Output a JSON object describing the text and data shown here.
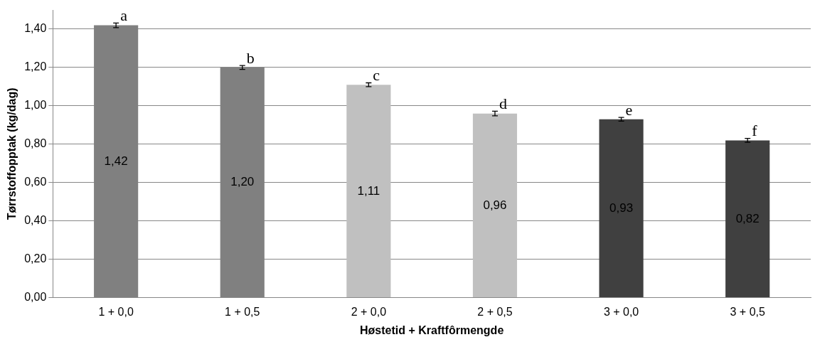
{
  "chart_data": {
    "type": "bar",
    "xlabel": "Høstetid + Kraftfôrmengde",
    "ylabel": "Tørrstoffopptak (kg/dag)",
    "categories": [
      "1 + 0,0",
      "1 + 0,5",
      "2 + 0,0",
      "2 + 0,5",
      "3 + 0,0",
      "3 + 0,5"
    ],
    "values": [
      1.42,
      1.2,
      1.11,
      0.96,
      0.93,
      0.82
    ],
    "colors": [
      "#808080",
      "#808080",
      "#c0c0c0",
      "#c0c0c0",
      "#404040",
      "#404040"
    ],
    "errors": [
      0.012,
      0.01,
      0.01,
      0.012,
      0.01,
      0.01
    ],
    "value_labels": [
      "1,42",
      "1,20",
      "1,11",
      "0,96",
      "0,93",
      "0,82"
    ],
    "ylim": [
      0,
      1.5
    ],
    "yticks": [
      {
        "value": 0,
        "label": "0,00"
      },
      {
        "value": 0.2,
        "label": "0,20"
      },
      {
        "value": 0.4,
        "label": "0,40"
      },
      {
        "value": 0.6,
        "label": "0,60"
      },
      {
        "value": 0.8,
        "label": "0,80"
      },
      {
        "value": 1,
        "label": "1,00"
      },
      {
        "value": 1.2,
        "label": "1,20"
      },
      {
        "value": 1.4,
        "label": "1,40"
      }
    ],
    "grid": "y",
    "legend": false,
    "annotations": [
      {
        "text": "a",
        "x": "1 + 0,0",
        "y": 1.42
      },
      {
        "text": "b",
        "x": "1 + 0,5",
        "y": 1.2
      },
      {
        "text": "c",
        "x": "2 + 0,0",
        "y": 1.11
      },
      {
        "text": "d",
        "x": "2 + 0,5",
        "y": 0.96
      },
      {
        "text": "e",
        "x": "3 + 0,0",
        "y": 0.93
      },
      {
        "text": "f",
        "x": "3 + 0,5",
        "y": 0.82
      }
    ]
  }
}
